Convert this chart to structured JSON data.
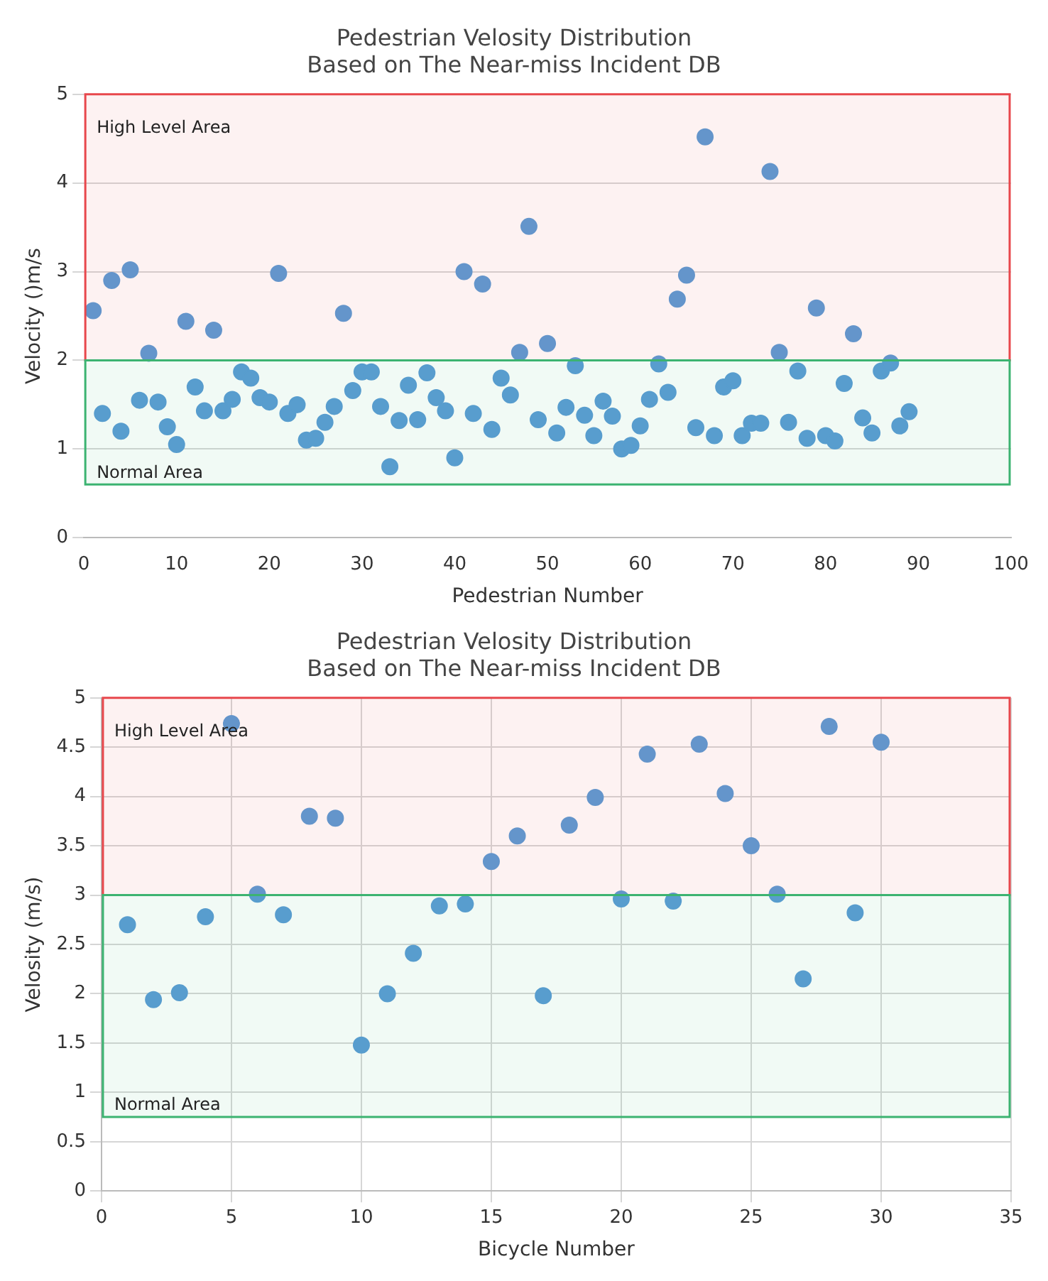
{
  "chart_data": [
    {
      "type": "scatter",
      "title": "Pedestrian Velosity Distribution\nBased on The Near-miss Incident DB",
      "xlabel": "Pedestrian Number",
      "ylabel": "Velocity ()m/s",
      "x": [
        1,
        2,
        3,
        4,
        5,
        6,
        7,
        8,
        9,
        10,
        11,
        12,
        13,
        14,
        15,
        16,
        17,
        18,
        19,
        20,
        21,
        22,
        23,
        24,
        25,
        26,
        27,
        28,
        29,
        30,
        31,
        32,
        33,
        34,
        35,
        36,
        37,
        38,
        39,
        40,
        41,
        42,
        43,
        44,
        45,
        46,
        47,
        48,
        49,
        50,
        51,
        52,
        53,
        54,
        55,
        56,
        57,
        58,
        59,
        60,
        61,
        62,
        63,
        64,
        65,
        66,
        67,
        68,
        69,
        70,
        71,
        72,
        73,
        74,
        75,
        76,
        77,
        78,
        79,
        80,
        81,
        82,
        83,
        84,
        85,
        86,
        87,
        88,
        89
      ],
      "series": [
        {
          "color": "#5b9bd5",
          "values": [
            2.56,
            1.4,
            2.9,
            1.2,
            3.02,
            1.55,
            2.08,
            1.53,
            1.25,
            1.05,
            2.44,
            1.7,
            1.43,
            2.34,
            1.43,
            1.56,
            1.87,
            1.8,
            1.58,
            1.53,
            2.98,
            1.4,
            1.5,
            1.1,
            1.12,
            1.3,
            1.48,
            2.53,
            1.66,
            1.87,
            1.87,
            1.48,
            0.8,
            1.32,
            1.72,
            1.33,
            1.86,
            1.58,
            1.43,
            0.9,
            3.0,
            1.4,
            2.86,
            1.22,
            1.8,
            1.61,
            2.09,
            3.51,
            1.33,
            2.19,
            1.18,
            1.47,
            1.94,
            1.38,
            1.15,
            1.54,
            1.37,
            1.0,
            1.04,
            1.26,
            1.56,
            1.96,
            1.64,
            2.69,
            2.96,
            1.24,
            4.52,
            1.15,
            1.7,
            1.77,
            1.15,
            1.29,
            1.29,
            4.13,
            2.09,
            1.3,
            1.88,
            1.12,
            2.59,
            1.15,
            1.09,
            1.74,
            2.3,
            1.35,
            1.18,
            1.88,
            1.97,
            1.26,
            1.42
          ]
        }
      ],
      "xlim": [
        0,
        100
      ],
      "xticks": [
        0,
        10,
        20,
        30,
        40,
        50,
        60,
        70,
        80,
        90,
        100
      ],
      "ylim": [
        0,
        5
      ],
      "yticks": [
        0,
        1,
        2,
        3,
        4,
        5
      ],
      "bands": [
        {
          "axis": "y",
          "from": 2,
          "to": 5,
          "label": "High Level Area",
          "color": "#e8474c"
        },
        {
          "axis": "y",
          "from": 0.6,
          "to": 2,
          "label": "Normal Area",
          "color": "#3cb371"
        }
      ],
      "grid": "y",
      "legend": false,
      "marker": "circle"
    },
    {
      "type": "scatter",
      "title": "Pedestrian Velosity Distribution\nBased on The Near-miss Incident DB",
      "xlabel": "Bicycle Number",
      "ylabel": "Velosity (m/s)",
      "x": [
        1,
        2,
        3,
        4,
        5,
        6,
        7,
        8,
        9,
        10,
        11,
        12,
        13,
        14,
        15,
        16,
        17,
        18,
        19,
        20,
        21,
        22,
        23,
        24,
        25,
        26,
        27,
        28,
        29,
        30
      ],
      "series": [
        {
          "color": "#5b9bd5",
          "values": [
            2.7,
            1.94,
            2.01,
            2.78,
            4.74,
            3.01,
            2.8,
            3.8,
            3.78,
            1.48,
            2.0,
            2.41,
            2.89,
            2.91,
            3.34,
            3.6,
            1.98,
            3.71,
            3.99,
            2.96,
            4.43,
            2.94,
            4.53,
            4.03,
            3.5,
            3.01,
            2.15,
            4.71,
            2.82,
            4.55
          ]
        }
      ],
      "xlim": [
        0,
        35
      ],
      "xticks": [
        0,
        5,
        10,
        15,
        20,
        25,
        30,
        35
      ],
      "ylim": [
        0,
        5
      ],
      "yticks": [
        0,
        0.5,
        1,
        1.5,
        2,
        2.5,
        3,
        3.5,
        4,
        4.5,
        5
      ],
      "bands": [
        {
          "axis": "y",
          "from": 3,
          "to": 5,
          "label": "High Level Area",
          "color": "#e8474c"
        },
        {
          "axis": "y",
          "from": 0.75,
          "to": 3,
          "label": "Normal Area",
          "color": "#3cb371"
        }
      ],
      "grid": true,
      "legend": false,
      "marker": "circle"
    }
  ]
}
